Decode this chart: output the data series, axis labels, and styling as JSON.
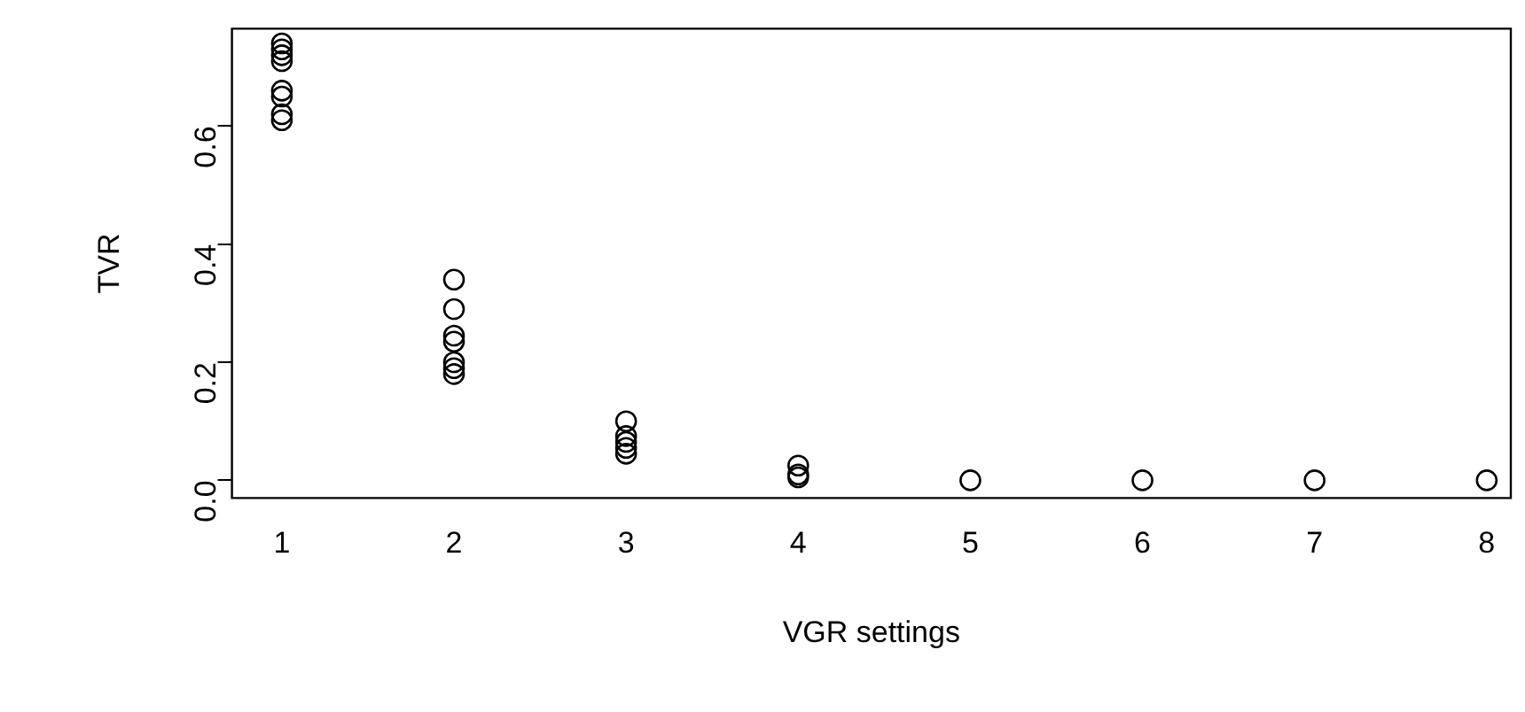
{
  "chart_data": {
    "type": "scatter",
    "xlabel": "VGR settings",
    "ylabel": "TVR",
    "marker": "circle",
    "grid": false,
    "legend": false,
    "xlim": [
      0.71,
      8.14
    ],
    "xticks": [
      1,
      2,
      3,
      4,
      5,
      6,
      7,
      8
    ],
    "ylim": [
      -0.03,
      0.765
    ],
    "yticks": [
      {
        "value": 0,
        "label": "0.0"
      },
      {
        "value": 0.2,
        "label": "0.2"
      },
      {
        "value": 0.4,
        "label": "0.4"
      },
      {
        "value": 0.6,
        "label": "0.6"
      }
    ],
    "series": [
      {
        "color": "#000000",
        "x": [
          1,
          1,
          1,
          1,
          1,
          1,
          1,
          1,
          2,
          2,
          2,
          2,
          2,
          2,
          2,
          3,
          3,
          3,
          3,
          3,
          4,
          4,
          4,
          5,
          6,
          7,
          8
        ],
        "values": [
          0.74,
          0.73,
          0.72,
          0.71,
          0.66,
          0.65,
          0.62,
          0.61,
          0.34,
          0.29,
          0.245,
          0.235,
          0.2,
          0.19,
          0.18,
          0.1,
          0.075,
          0.065,
          0.055,
          0.045,
          0.025,
          0.01,
          0.005,
          0,
          0,
          0,
          0
        ]
      }
    ]
  }
}
